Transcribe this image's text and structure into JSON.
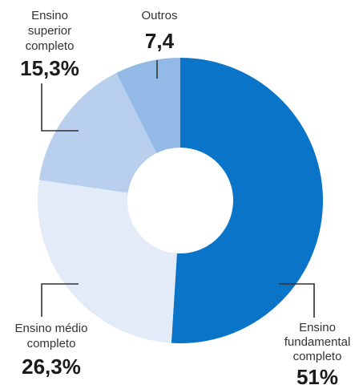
{
  "chart_data": {
    "type": "pie",
    "donut": true,
    "slices": [
      {
        "key": "fundamental",
        "label_lines": [
          "Ensino",
          "fundamental",
          "completo"
        ],
        "value_label": "51%",
        "value": 51,
        "color": "#0a74c8"
      },
      {
        "key": "medio",
        "label_lines": [
          "Ensino médio",
          "completo"
        ],
        "value_label": "26,3%",
        "value": 26.3,
        "color": "#e3ebf8"
      },
      {
        "key": "superior",
        "label_lines": [
          "Ensino",
          "superior",
          "completo"
        ],
        "value_label": "15,3%",
        "value": 15.3,
        "color": "#b9cfee"
      },
      {
        "key": "outros",
        "label_lines": [
          "Outros"
        ],
        "value_label": "7,4",
        "value": 7.4,
        "color": "#93bae6"
      }
    ]
  }
}
